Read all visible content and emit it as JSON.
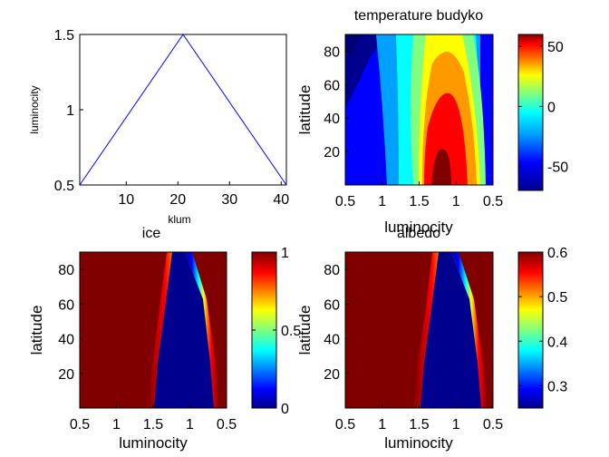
{
  "chart_data": [
    {
      "id": "luminosity",
      "type": "line",
      "title": "",
      "xlabel": "klum",
      "ylabel": "luminocity",
      "x": [
        1,
        21,
        41
      ],
      "y": [
        0.5,
        1.5,
        0.5
      ],
      "xlim": [
        1,
        41
      ],
      "ylim": [
        0.5,
        1.5
      ],
      "xticks": [
        "10",
        "20",
        "30",
        "40"
      ],
      "yticks": [
        "0.5",
        "1",
        "1.5"
      ],
      "color": "#0000ff"
    },
    {
      "id": "temperature",
      "type": "heatmap",
      "title": "temperature budyko",
      "xlabel": "luminocity",
      "ylabel": "latitude",
      "xticks": [
        "0.5",
        "1",
        "1.5",
        "1",
        "0.5"
      ],
      "yticks": [
        "20",
        "40",
        "60",
        "80"
      ],
      "ylim": [
        0,
        90
      ],
      "colorbar": {
        "min": -70,
        "max": 60,
        "ticks": [
          "50",
          "0",
          "-50"
        ]
      }
    },
    {
      "id": "ice",
      "type": "heatmap",
      "title": "ice",
      "xlabel": "luminocity",
      "ylabel": "latitude",
      "xticks": [
        "0.5",
        "1",
        "1.5",
        "1",
        "0.5"
      ],
      "yticks": [
        "20",
        "40",
        "60",
        "80"
      ],
      "ylim": [
        0,
        90
      ],
      "colorbar": {
        "min": 0,
        "max": 1,
        "ticks": [
          "1",
          "0.5",
          "0"
        ]
      }
    },
    {
      "id": "albedo",
      "type": "heatmap",
      "title": "albedo",
      "xlabel": "luminocity",
      "ylabel": "latitude",
      "xticks": [
        "0.5",
        "1",
        "1.5",
        "1",
        "0.5"
      ],
      "yticks": [
        "20",
        "40",
        "60",
        "80"
      ],
      "ylim": [
        0,
        90
      ],
      "colorbar": {
        "min": 0.25,
        "max": 0.6,
        "ticks": [
          "0.6",
          "0.5",
          "0.4",
          "0.3"
        ]
      }
    }
  ]
}
